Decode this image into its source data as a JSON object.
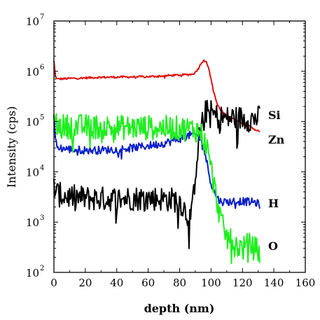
{
  "chart_data": {
    "type": "line",
    "title": "",
    "xlabel": "depth (nm)",
    "ylabel": "Intensity (cps)",
    "xlim": [
      0,
      160
    ],
    "ylim": [
      100,
      10000000
    ],
    "yscale": "log",
    "xticks": [
      "0",
      "20",
      "40",
      "60",
      "80",
      "100",
      "120",
      "140",
      "160"
    ],
    "yticks": [
      {
        "base": "10",
        "exp": "2"
      },
      {
        "base": "10",
        "exp": "3"
      },
      {
        "base": "10",
        "exp": "4"
      },
      {
        "base": "10",
        "exp": "5"
      },
      {
        "base": "10",
        "exp": "6"
      },
      {
        "base": "10",
        "exp": "7"
      }
    ],
    "grid": false,
    "legend": "none",
    "series": [
      {
        "name": "Zn",
        "color": "#e01010",
        "noise": 0.02,
        "x": [
          0,
          1,
          2,
          10,
          30,
          60,
          85,
          88,
          90,
          92,
          94,
          96,
          98,
          100,
          102,
          104,
          106,
          110,
          115,
          120,
          125,
          130,
          131
        ],
        "y": [
          1600000,
          800000,
          700000,
          720000,
          760000,
          780000,
          860000,
          870000,
          950000,
          1150000,
          1500000,
          1750000,
          1300000,
          700000,
          350000,
          220000,
          170000,
          130000,
          110000,
          95000,
          78000,
          65000,
          60000
        ]
      },
      {
        "name": "Si",
        "color": "#000000",
        "noise": 0.25,
        "x": [
          0,
          1,
          3,
          10,
          20,
          30,
          40,
          50,
          60,
          70,
          80,
          85,
          88,
          89,
          91,
          93,
          95,
          97,
          100,
          103,
          106,
          110,
          115,
          120,
          125,
          128,
          130,
          131
        ],
        "y": [
          6000,
          4000,
          3500,
          3200,
          3000,
          2900,
          2900,
          3000,
          3000,
          2900,
          2700,
          1400,
          1600,
          4000,
          20000,
          60000,
          130000,
          160000,
          150000,
          130000,
          120000,
          115000,
          120000,
          115000,
          110000,
          115000,
          120000,
          115000
        ]
      },
      {
        "name": "H",
        "color": "#0a20c8",
        "noise": 0.08,
        "x": [
          0,
          1,
          3,
          10,
          20,
          30,
          40,
          50,
          60,
          70,
          80,
          85,
          88,
          90,
          92,
          94,
          96,
          98,
          100,
          102,
          104,
          106,
          110,
          115,
          120,
          125,
          128,
          131
        ],
        "y": [
          150000,
          40000,
          30000,
          28000,
          27000,
          27000,
          28000,
          30000,
          33000,
          37000,
          45000,
          52000,
          55000,
          55000,
          50000,
          40000,
          25000,
          12000,
          6000,
          4000,
          3000,
          2600,
          2500,
          2600,
          2600,
          2500,
          2500,
          2200
        ]
      },
      {
        "name": "O",
        "color": "#20ee20",
        "noise": 0.25,
        "x": [
          0,
          1,
          3,
          10,
          20,
          30,
          40,
          50,
          60,
          70,
          80,
          85,
          88,
          90,
          92,
          94,
          96,
          98,
          100,
          102,
          104,
          106,
          108,
          110,
          113,
          116,
          120,
          124,
          128,
          131
        ],
        "y": [
          100000,
          90000,
          80000,
          80000,
          79000,
          78000,
          77000,
          76000,
          76000,
          75000,
          73000,
          72000,
          71000,
          70000,
          65000,
          55000,
          40000,
          25000,
          12000,
          5000,
          2500,
          1200,
          700,
          500,
          400,
          350,
          300,
          350,
          300,
          250
        ]
      }
    ]
  }
}
